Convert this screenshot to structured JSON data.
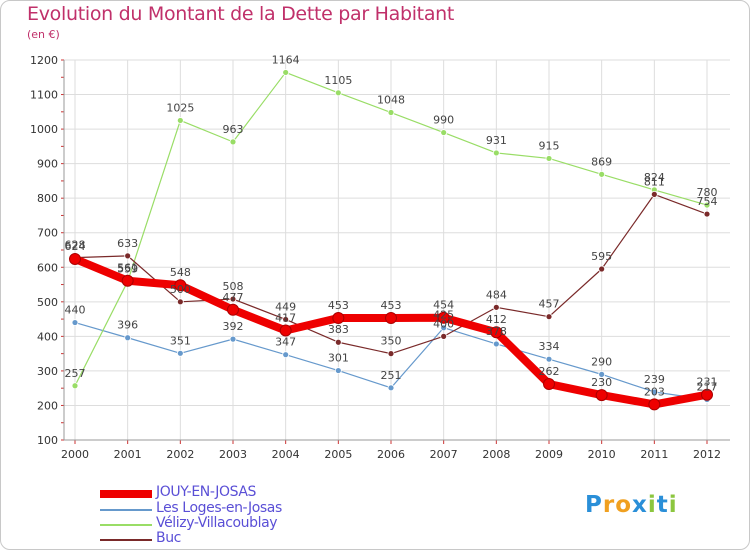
{
  "title": "Evolution du Montant de la Dette par Habitant",
  "unit": "(en €)",
  "logo": {
    "text": "Proxiti",
    "letters": [
      "P",
      "r",
      "o",
      "x",
      "i",
      "t",
      "i"
    ],
    "colors": [
      "#2a8fd8",
      "#f0a020",
      "#f0a020",
      "#2a8fd8",
      "#8cc63f",
      "#2a8fd8",
      "#8cc63f"
    ]
  },
  "chart_data": {
    "type": "line",
    "categories": [
      "2000",
      "2001",
      "2002",
      "2003",
      "2004",
      "2005",
      "2006",
      "2007",
      "2008",
      "2009",
      "2010",
      "2011",
      "2012"
    ],
    "ylim": [
      100,
      1200
    ],
    "yticks": [
      100,
      200,
      300,
      400,
      500,
      600,
      700,
      800,
      900,
      1000,
      1100,
      1200
    ],
    "grid": true,
    "legend_position": "bottom-left",
    "series": [
      {
        "name": "JOUY-EN-JOSAS",
        "color": "#ee0000",
        "values": [
          624,
          561,
          548,
          477,
          417,
          453,
          453,
          454,
          412,
          262,
          230,
          203,
          231
        ]
      },
      {
        "name": "Les Loges-en-Josas",
        "color": "#6699cc",
        "values": [
          440,
          396,
          351,
          392,
          347,
          301,
          251,
          425,
          378,
          334,
          290,
          239,
          217
        ]
      },
      {
        "name": "Vélizy-Villacoublay",
        "color": "#99dd66",
        "values": [
          257,
          559,
          1025,
          963,
          1164,
          1105,
          1048,
          990,
          931,
          915,
          869,
          824,
          780
        ]
      },
      {
        "name": "Buc",
        "color": "#7a2a2a",
        "values": [
          628,
          633,
          500,
          508,
          449,
          383,
          350,
          400,
          484,
          457,
          595,
          811,
          754
        ]
      }
    ],
    "data_labels": [
      [
        "624",
        "561",
        "548",
        "477",
        "417",
        "453",
        "453",
        "454",
        "412",
        "262",
        "230",
        "203",
        "231"
      ],
      [
        "440",
        "396",
        "351",
        "392",
        "347",
        "301",
        "251",
        "425",
        "378",
        "334",
        "290",
        "239",
        "217"
      ],
      [
        "257",
        "559",
        "1025",
        "963",
        "1164",
        "1105",
        "1048",
        "990",
        "931",
        "915",
        "869",
        "824",
        "780"
      ],
      [
        "628",
        "633",
        "500",
        "508",
        "449",
        "383",
        "350",
        "400",
        "484",
        "457",
        "595",
        "811",
        "754"
      ]
    ]
  }
}
